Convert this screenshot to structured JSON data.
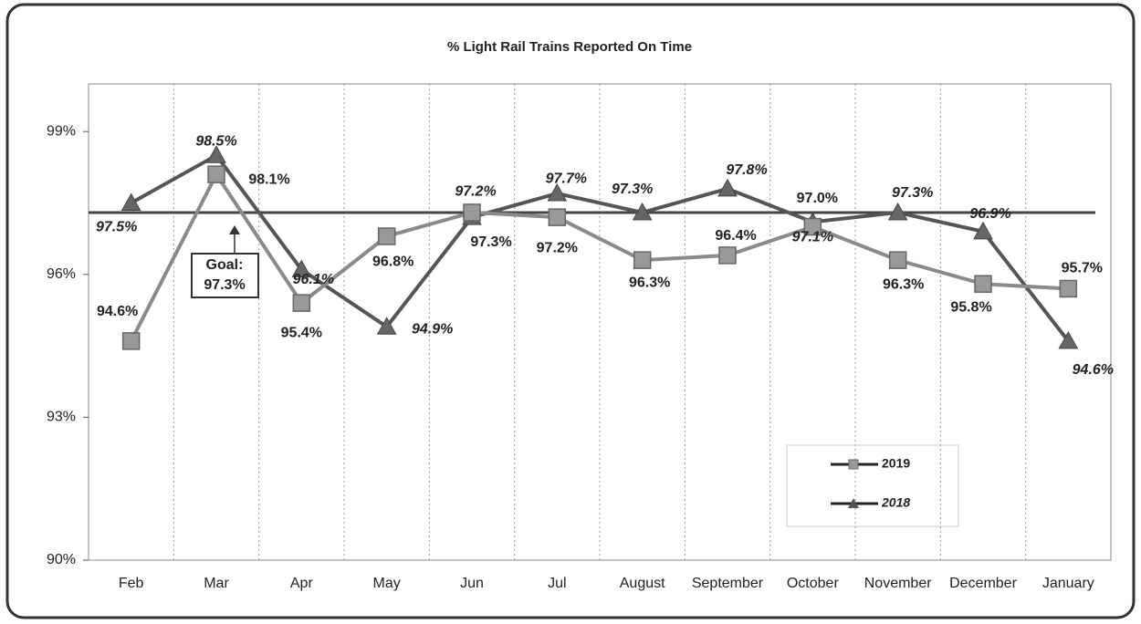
{
  "chart_data": {
    "type": "line",
    "title": "% Light Rail Trains Reported On Time",
    "categories": [
      "Feb",
      "Mar",
      "Apr",
      "May",
      "Jun",
      "Jul",
      "August",
      "September",
      "October",
      "November",
      "December",
      "January"
    ],
    "series": [
      {
        "name": "2019",
        "color": "#8a8a8a",
        "marker": "square",
        "values": [
          94.6,
          98.1,
          95.4,
          96.8,
          97.3,
          97.2,
          96.3,
          96.4,
          97.0,
          96.3,
          95.8,
          95.7
        ],
        "value_labels": [
          "94.6%",
          "98.1%",
          "95.4%",
          "96.8%",
          "97.3%",
          "97.2%",
          "96.3%",
          "96.4%",
          "97.0%",
          "96.3%",
          "95.8%",
          "95.7%"
        ]
      },
      {
        "name": "2018",
        "color": "#555555",
        "marker": "triangle",
        "values": [
          97.5,
          98.5,
          96.1,
          94.9,
          97.2,
          97.7,
          97.3,
          97.8,
          97.1,
          97.3,
          96.9,
          94.6
        ],
        "value_labels": [
          "97.5%",
          "98.5%",
          "96.1%",
          "94.9%",
          "97.2%",
          "97.7%",
          "97.3%",
          "97.8%",
          "97.1%",
          "97.3%",
          "96.9%",
          "94.6%"
        ]
      }
    ],
    "goal": {
      "value": 97.3,
      "label": [
        "Goal:",
        "97.3%"
      ]
    },
    "ylim": [
      90,
      100
    ],
    "yticks": [
      {
        "value": 90,
        "label": "90%"
      },
      {
        "value": 93,
        "label": "93%"
      },
      {
        "value": 96,
        "label": "96%"
      },
      {
        "value": 99,
        "label": "99%"
      }
    ],
    "grid": true,
    "legend": "lower right"
  }
}
